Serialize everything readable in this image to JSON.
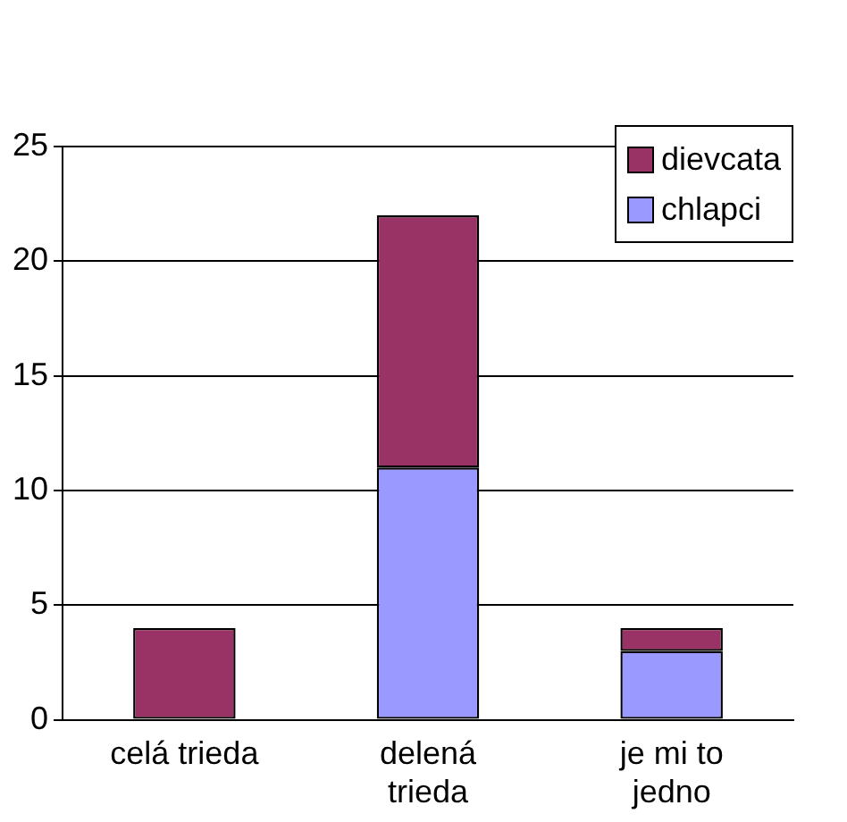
{
  "chart_data": {
    "type": "bar",
    "stacked": true,
    "categories": [
      "celá trieda",
      "delená trieda",
      "je mi to jedno"
    ],
    "series": [
      {
        "name": "chlapci",
        "color": "#9999ff",
        "values": [
          0,
          11,
          3
        ]
      },
      {
        "name": "dievcata",
        "color": "#993366",
        "values": [
          4,
          11,
          1
        ]
      }
    ],
    "ylim": [
      0,
      25
    ],
    "yticks": [
      0,
      5,
      10,
      15,
      20,
      25
    ],
    "grid": "y",
    "legend": "top right"
  }
}
